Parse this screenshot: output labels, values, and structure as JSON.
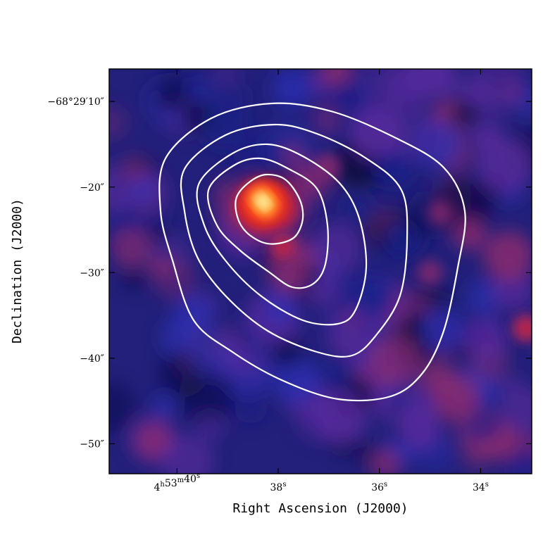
{
  "chart_data": {
    "type": "heatmap",
    "title": "",
    "xlabel": "Right Ascension (J2000)",
    "ylabel": "Declination (J2000)",
    "x_tick_labels": [
      {
        "h": "4",
        "m": "53",
        "s": "40",
        "text": "4h53m40s"
      },
      {
        "h": "",
        "m": "",
        "s": "38",
        "text": "38s"
      },
      {
        "h": "",
        "m": "",
        "s": "36",
        "text": "36s"
      },
      {
        "h": "",
        "m": "",
        "s": "34",
        "text": "34s"
      }
    ],
    "y_tick_labels": [
      "−68°29′10″",
      "−20″",
      "−30″",
      "−40″",
      "−50″"
    ],
    "x_ticks_ra_seconds": [
      40,
      38,
      36,
      34
    ],
    "y_ticks_dec_arcsec": [
      -10,
      -20,
      -30,
      -40,
      -50
    ],
    "xlim_ra_seconds": [
      41.34,
      32.99
    ],
    "ylim_dec_arcsec": [
      -6.2,
      -53.5
    ],
    "colormap": [
      "#0a0a3c",
      "#1a1f8a",
      "#2a2fb4",
      "#5a2a9e",
      "#8c2a6e",
      "#c8203a",
      "#ff2a10",
      "#ff9a20",
      "#ffff90",
      "#ffffff"
    ],
    "contour_color": "#ffffff",
    "emission_peaks": [
      {
        "ra_s": 38.3,
        "dec_arcsec": -21.7,
        "level": "peak"
      },
      {
        "ra_s": 37.9,
        "dec_arcsec": -27.0,
        "level": "secondary"
      },
      {
        "ra_s": 33.1,
        "dec_arcsec": -36.5,
        "level": "secondary"
      },
      {
        "ra_s": 35.0,
        "dec_arcsec": -30.0,
        "level": "weak"
      },
      {
        "ra_s": 34.8,
        "dec_arcsec": -23.0,
        "level": "weak"
      },
      {
        "ra_s": 37.0,
        "dec_arcsec": -17.5,
        "level": "weak"
      }
    ],
    "contour_levels": 5,
    "grid": false
  }
}
